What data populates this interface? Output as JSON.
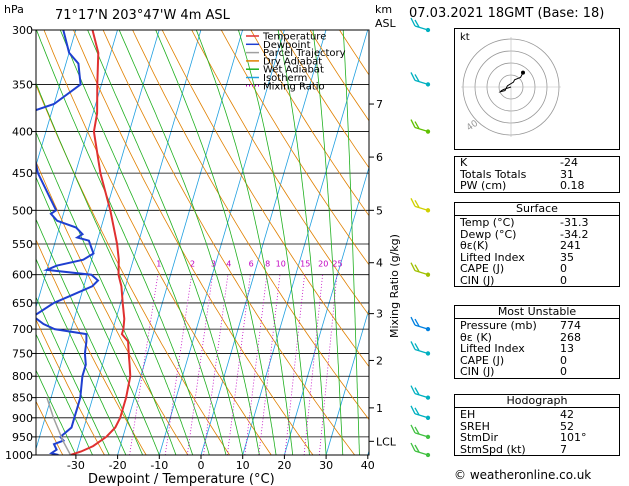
{
  "header": {
    "location": "71°17'N  203°47'W  4m  ASL",
    "pressure_unit": "hPa",
    "height_unit_top": "km",
    "height_unit_bottom": "ASL",
    "datetime": "07.03.2021  18GMT  (Base: 18)"
  },
  "legend": {
    "items": [
      {
        "label": "Temperature",
        "color": "#e03030",
        "style": "solid"
      },
      {
        "label": "Dewpoint",
        "color": "#1f3fd0",
        "style": "solid"
      },
      {
        "label": "Parcel Trajectory",
        "color": "#a0a0a0",
        "style": "solid"
      },
      {
        "label": "Dry Adiabat",
        "color": "#e08000",
        "style": "solid"
      },
      {
        "label": "Wet Adiabat",
        "color": "#20b020",
        "style": "solid"
      },
      {
        "label": "Isotherm",
        "color": "#20a0e0",
        "style": "solid"
      },
      {
        "label": "Mixing Ratio",
        "color": "#c000c0",
        "style": "dotted"
      }
    ]
  },
  "chart_data": {
    "type": "line",
    "title": "Skew-T log-P diagram",
    "xlabel": "Dewpoint / Temperature (°C)",
    "ylabel": "hPa",
    "y2label": "Mixing Ratio (g/kg)",
    "xlim": [
      -35,
      40
    ],
    "ylim": [
      1000,
      300
    ],
    "x_ticks": [
      -30,
      -20,
      -10,
      0,
      10,
      20,
      30,
      40
    ],
    "pressure_levels": [
      300,
      350,
      400,
      450,
      500,
      550,
      600,
      650,
      700,
      750,
      800,
      850,
      900,
      950,
      1000
    ],
    "height_ticks_km": [
      {
        "label": "7",
        "p": 370
      },
      {
        "label": "6",
        "p": 430
      },
      {
        "label": "5",
        "p": 500
      },
      {
        "label": "4",
        "p": 580
      },
      {
        "label": "3",
        "p": 670
      },
      {
        "label": "2",
        "p": 765
      },
      {
        "label": "1",
        "p": 875
      },
      {
        "label": "LCL",
        "p": 962
      }
    ],
    "mixing_ratio_labels": [
      "1",
      "2",
      "3",
      "4",
      "6",
      "8",
      "10",
      "15",
      "20",
      "25"
    ],
    "mixing_ratio_values": [
      1,
      2,
      3,
      4,
      6,
      8,
      10,
      15,
      20,
      25
    ],
    "mixing_ratio_label_p": 590,
    "series": [
      {
        "name": "Temperature",
        "color": "#e03030",
        "points": [
          [
            1000,
            -31.3
          ],
          [
            990,
            -29
          ],
          [
            975,
            -26.5
          ],
          [
            950,
            -24
          ],
          [
            925,
            -22.5
          ],
          [
            900,
            -22
          ],
          [
            875,
            -22
          ],
          [
            850,
            -22
          ],
          [
            800,
            -22.5
          ],
          [
            774,
            -23.5
          ],
          [
            750,
            -24.5
          ],
          [
            725,
            -25.5
          ],
          [
            710,
            -27.5
          ],
          [
            700,
            -27.5
          ],
          [
            680,
            -28
          ],
          [
            650,
            -29.5
          ],
          [
            620,
            -31
          ],
          [
            600,
            -32.5
          ],
          [
            575,
            -33.5
          ],
          [
            550,
            -35
          ],
          [
            500,
            -39
          ],
          [
            450,
            -44
          ],
          [
            400,
            -48.5
          ],
          [
            380,
            -49
          ],
          [
            350,
            -51
          ],
          [
            320,
            -53
          ],
          [
            300,
            -56
          ]
        ]
      },
      {
        "name": "Dewpoint",
        "color": "#1f3fd0",
        "points": [
          [
            1000,
            -34.2
          ],
          [
            995,
            -36
          ],
          [
            985,
            -35
          ],
          [
            970,
            -36
          ],
          [
            960,
            -34
          ],
          [
            950,
            -35
          ],
          [
            925,
            -33
          ],
          [
            900,
            -33
          ],
          [
            875,
            -33
          ],
          [
            850,
            -33
          ],
          [
            800,
            -34
          ],
          [
            774,
            -34
          ],
          [
            750,
            -35
          ],
          [
            725,
            -35.5
          ],
          [
            710,
            -36
          ],
          [
            700,
            -44
          ],
          [
            690,
            -47
          ],
          [
            675,
            -50
          ],
          [
            650,
            -46
          ],
          [
            635,
            -42
          ],
          [
            620,
            -38
          ],
          [
            610,
            -37
          ],
          [
            600,
            -39
          ],
          [
            592,
            -50
          ],
          [
            585,
            -48
          ],
          [
            575,
            -42
          ],
          [
            565,
            -40
          ],
          [
            555,
            -41
          ],
          [
            545,
            -42
          ],
          [
            540,
            -45
          ],
          [
            535,
            -44
          ],
          [
            525,
            -46
          ],
          [
            515,
            -51
          ],
          [
            505,
            -53
          ],
          [
            500,
            -52
          ],
          [
            450,
            -59
          ],
          [
            400,
            -64
          ],
          [
            380,
            -66
          ],
          [
            370,
            -60
          ],
          [
            350,
            -55
          ],
          [
            340,
            -56
          ],
          [
            330,
            -57
          ],
          [
            320,
            -60
          ],
          [
            300,
            -63
          ]
        ]
      },
      {
        "name": "Parcel Trajectory",
        "color": "#a0a0a0",
        "points": [
          [
            1000,
            -31.3
          ],
          [
            962,
            -34
          ],
          [
            900,
            -38
          ],
          [
            850,
            -41
          ]
        ]
      }
    ],
    "hodograph": {
      "label": "kt",
      "ring_label": "40",
      "ring_speeds_kt": [
        10,
        20,
        30,
        40
      ],
      "points_kt": [
        [
          0,
          0
        ],
        [
          -3,
          -1
        ],
        [
          -6,
          -2
        ],
        [
          -8,
          -3
        ],
        [
          -9,
          -4
        ],
        [
          -5,
          -3
        ],
        [
          -3,
          1
        ],
        [
          2,
          4
        ],
        [
          3,
          6
        ],
        [
          8,
          8
        ],
        [
          10,
          12
        ]
      ]
    },
    "wind_barbs": [
      {
        "p": 300,
        "color": "#00b0c0"
      },
      {
        "p": 350,
        "color": "#00b0c0"
      },
      {
        "p": 400,
        "color": "#60c000"
      },
      {
        "p": 500,
        "color": "#d0d000"
      },
      {
        "p": 600,
        "color": "#a0c000"
      },
      {
        "p": 700,
        "color": "#0080e0"
      },
      {
        "p": 750,
        "color": "#00b0c0"
      },
      {
        "p": 850,
        "color": "#00b0c0"
      },
      {
        "p": 900,
        "color": "#00b0c0"
      },
      {
        "p": 950,
        "color": "#40c040"
      },
      {
        "p": 1000,
        "color": "#40c040"
      }
    ]
  },
  "indices": {
    "basic": [
      {
        "label": "K",
        "value": "-24"
      },
      {
        "label": "Totals Totals",
        "value": "31"
      },
      {
        "label": "PW (cm)",
        "value": "0.18"
      }
    ],
    "surface": {
      "title": "Surface",
      "rows": [
        {
          "label": "Temp (°C)",
          "value": "-31.3"
        },
        {
          "label": "Dewp (°C)",
          "value": "-34.2"
        },
        {
          "label": "θε(K)",
          "value": "241"
        },
        {
          "label": "Lifted Index",
          "value": "35"
        },
        {
          "label": "CAPE (J)",
          "value": "0"
        },
        {
          "label": "CIN (J)",
          "value": "0"
        }
      ]
    },
    "most_unstable": {
      "title": "Most Unstable",
      "rows": [
        {
          "label": "Pressure (mb)",
          "value": "774"
        },
        {
          "label": "θε (K)",
          "value": "268"
        },
        {
          "label": "Lifted Index",
          "value": "13"
        },
        {
          "label": "CAPE (J)",
          "value": "0"
        },
        {
          "label": "CIN (J)",
          "value": "0"
        }
      ]
    },
    "hodograph": {
      "title": "Hodograph",
      "rows": [
        {
          "label": "EH",
          "value": "42"
        },
        {
          "label": "SREH",
          "value": "52"
        },
        {
          "label": "StmDir",
          "value": "101°"
        },
        {
          "label": "StmSpd (kt)",
          "value": "7"
        }
      ]
    }
  },
  "footer": {
    "copyright": "© weatheronline.co.uk"
  }
}
